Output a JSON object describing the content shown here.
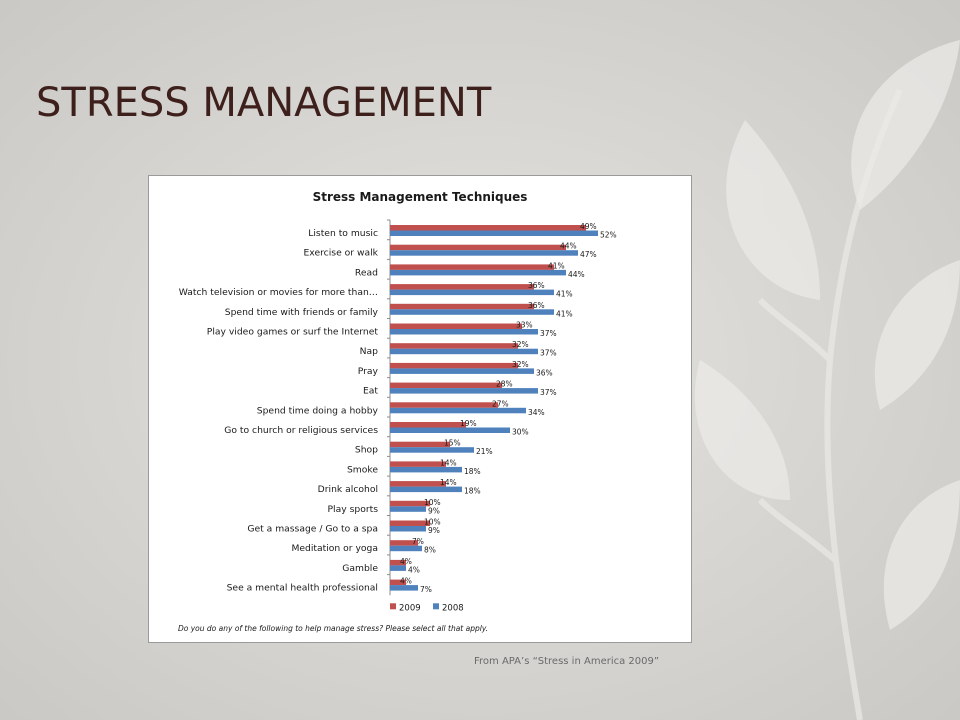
{
  "slide": {
    "title": "STRESS MANAGEMENT",
    "source": "From APA’s “Stress in America 2009”"
  },
  "colors": {
    "series_2009": "#c0504d",
    "series_2008": "#4f81bd",
    "title_text": "#3d1f1b"
  },
  "chart_data": {
    "type": "bar",
    "orientation": "horizontal",
    "title": "Stress Management Techniques",
    "caption": "Do you do any of the following to help manage stress? Please select all that apply.",
    "categories": [
      "Listen to music",
      "Exercise or walk",
      "Read",
      "Watch television or movies for more than…",
      "Spend time with friends or family",
      "Play video games or surf the Internet",
      "Nap",
      "Pray",
      "Eat",
      "Spend time doing a hobby",
      "Go to church or religious services",
      "Shop",
      "Smoke",
      "Drink alcohol",
      "Play sports",
      "Get a massage / Go to a spa",
      "Meditation or yoga",
      "Gamble",
      "See a mental health professional"
    ],
    "series": [
      {
        "name": "2009",
        "color": "#c0504d",
        "values": [
          49,
          44,
          41,
          36,
          36,
          33,
          32,
          32,
          28,
          27,
          19,
          15,
          14,
          14,
          10,
          10,
          7,
          4,
          4
        ]
      },
      {
        "name": "2008",
        "color": "#4f81bd",
        "values": [
          52,
          47,
          44,
          41,
          41,
          37,
          37,
          36,
          37,
          34,
          30,
          21,
          18,
          18,
          9,
          9,
          8,
          4,
          7
        ]
      }
    ],
    "value_format": "percent",
    "legend": {
      "position": "bottom-left"
    },
    "grid": false
  }
}
